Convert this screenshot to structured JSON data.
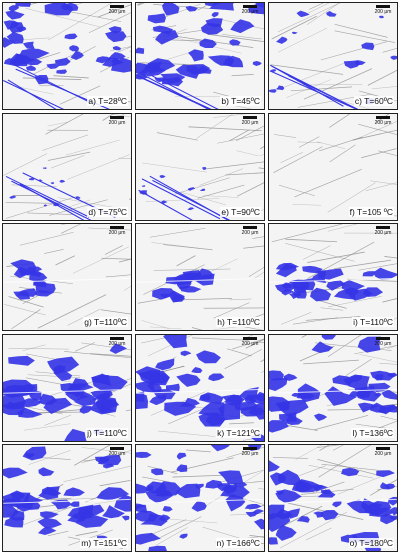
{
  "scale_bar_label": "200 μm",
  "colors": {
    "phase": "#3535e6",
    "background": "#f4f4f4",
    "lines": "#8a8a8a"
  },
  "panels": [
    {
      "caption": "a) T=28ºC",
      "coverage": 0.45,
      "band": 0.35,
      "style": "top"
    },
    {
      "caption": "b) T=45ºC",
      "coverage": 0.42,
      "band": 0.35,
      "style": "top"
    },
    {
      "caption": "c) T=60ºC",
      "coverage": 0.12,
      "band": 0.35,
      "style": "sparse"
    },
    {
      "caption": "d) T=75ºC",
      "coverage": 0.05,
      "band": 0.5,
      "style": "streak"
    },
    {
      "caption": "e) T=90ºC",
      "coverage": 0.03,
      "band": 0.5,
      "style": "streak"
    },
    {
      "caption": "f) T=105 ºC",
      "coverage": 0.0,
      "band": 0.5,
      "style": "empty"
    },
    {
      "caption": "g) T=110ºC",
      "coverage": 0.08,
      "band": 0.55,
      "style": "band"
    },
    {
      "caption": "h) T=110ºC",
      "coverage": 0.14,
      "band": 0.55,
      "style": "band"
    },
    {
      "caption": "i) T=110ºC",
      "coverage": 0.28,
      "band": 0.55,
      "style": "band"
    },
    {
      "caption": "j) T=110ºC",
      "coverage": 0.5,
      "band": 0.55,
      "style": "dense"
    },
    {
      "caption": "k) T=121ºC",
      "coverage": 0.5,
      "band": 0.55,
      "style": "dense"
    },
    {
      "caption": "l) T=136ºC",
      "coverage": 0.5,
      "band": 0.55,
      "style": "dense"
    },
    {
      "caption": "m) T=151ºC",
      "coverage": 0.5,
      "band": 0.55,
      "style": "dense"
    },
    {
      "caption": "n) T=166ºC",
      "coverage": 0.5,
      "band": 0.55,
      "style": "dense"
    },
    {
      "caption": "o) T=180ºC",
      "coverage": 0.5,
      "band": 0.55,
      "style": "dense"
    }
  ]
}
